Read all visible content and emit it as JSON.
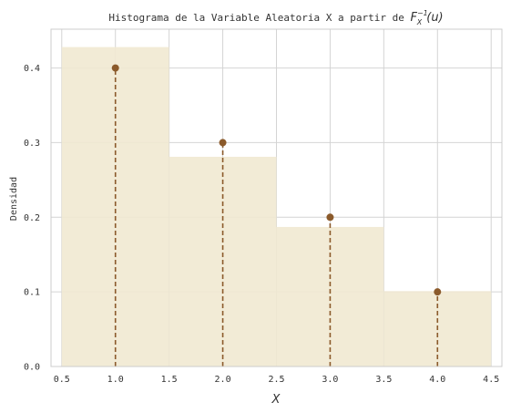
{
  "chart_data": {
    "type": "bar",
    "title_text": "Histograma de la Variable Aleatoria X a partir de ",
    "title_math_base": "F",
    "title_math_sup": "−1",
    "title_math_sub": "X",
    "title_math_arg": "(u)",
    "xlabel": "X",
    "ylabel": "Densidad",
    "xlim": [
      0.4,
      4.6
    ],
    "ylim": [
      0.0,
      0.452
    ],
    "xticks": [
      0.5,
      1.0,
      1.5,
      2.0,
      2.5,
      3.0,
      3.5,
      4.0,
      4.5
    ],
    "xtick_labels": [
      "0.5",
      "1.0",
      "1.5",
      "2.0",
      "2.5",
      "3.0",
      "3.5",
      "4.0",
      "4.5"
    ],
    "yticks": [
      0.0,
      0.1,
      0.2,
      0.3,
      0.4
    ],
    "ytick_labels": [
      "0.0",
      "0.1",
      "0.2",
      "0.3",
      "0.4"
    ],
    "grid": true,
    "histogram": {
      "bins": [
        {
          "left": 0.5,
          "right": 1.5,
          "density": 0.428
        },
        {
          "left": 1.5,
          "right": 2.5,
          "density": 0.281
        },
        {
          "left": 2.5,
          "right": 3.5,
          "density": 0.187
        },
        {
          "left": 3.5,
          "right": 4.5,
          "density": 0.101
        }
      ],
      "color": "#f1e9d1"
    },
    "stems": {
      "x": [
        1.0,
        2.0,
        3.0,
        4.0
      ],
      "y": [
        0.4,
        0.3,
        0.2,
        0.1
      ],
      "color": "#8b5a2b"
    },
    "colors": {
      "grid": "#d4d4d4",
      "spine": "#cccccc",
      "text": "#333333"
    }
  }
}
